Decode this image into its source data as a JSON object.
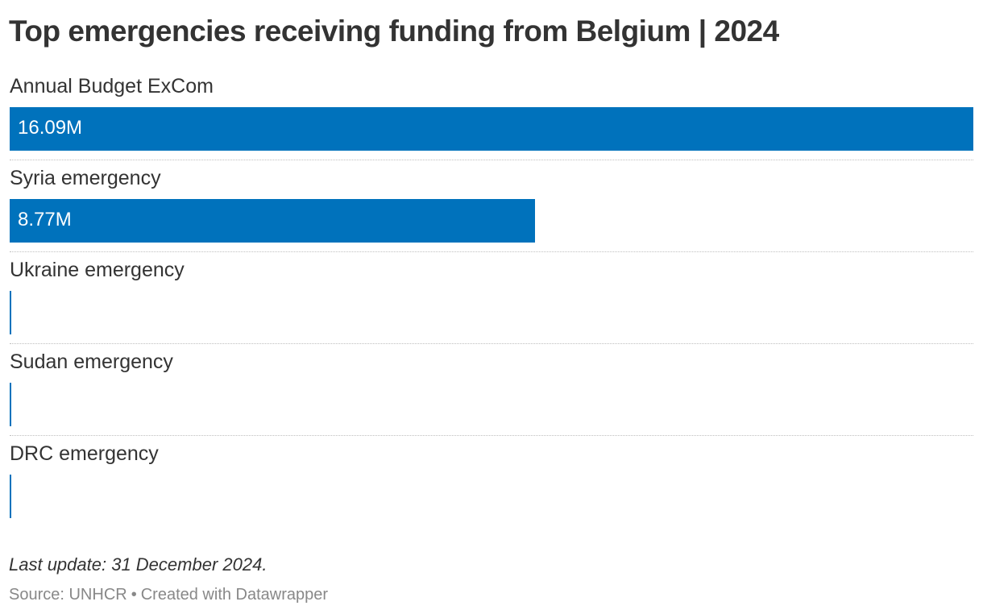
{
  "chart_data": {
    "type": "bar",
    "orientation": "horizontal",
    "title": "Top emergencies receiving funding from Belgium | 2024",
    "categories": [
      "Annual Budget ExCom",
      "Syria emergency",
      "Ukraine emergency",
      "Sudan emergency",
      "DRC emergency"
    ],
    "values": [
      16.09,
      8.77,
      0,
      0,
      0
    ],
    "value_labels": [
      "16.09M",
      "8.77M",
      "",
      "",
      ""
    ],
    "unit": "M",
    "xlim": [
      0,
      16.09
    ],
    "bar_color": "#0072bc",
    "grid": false
  },
  "footer": {
    "note": "Last update: 31 December 2024.",
    "source": "Source: UNHCR",
    "separator": "•",
    "credit": "Created with Datawrapper"
  }
}
